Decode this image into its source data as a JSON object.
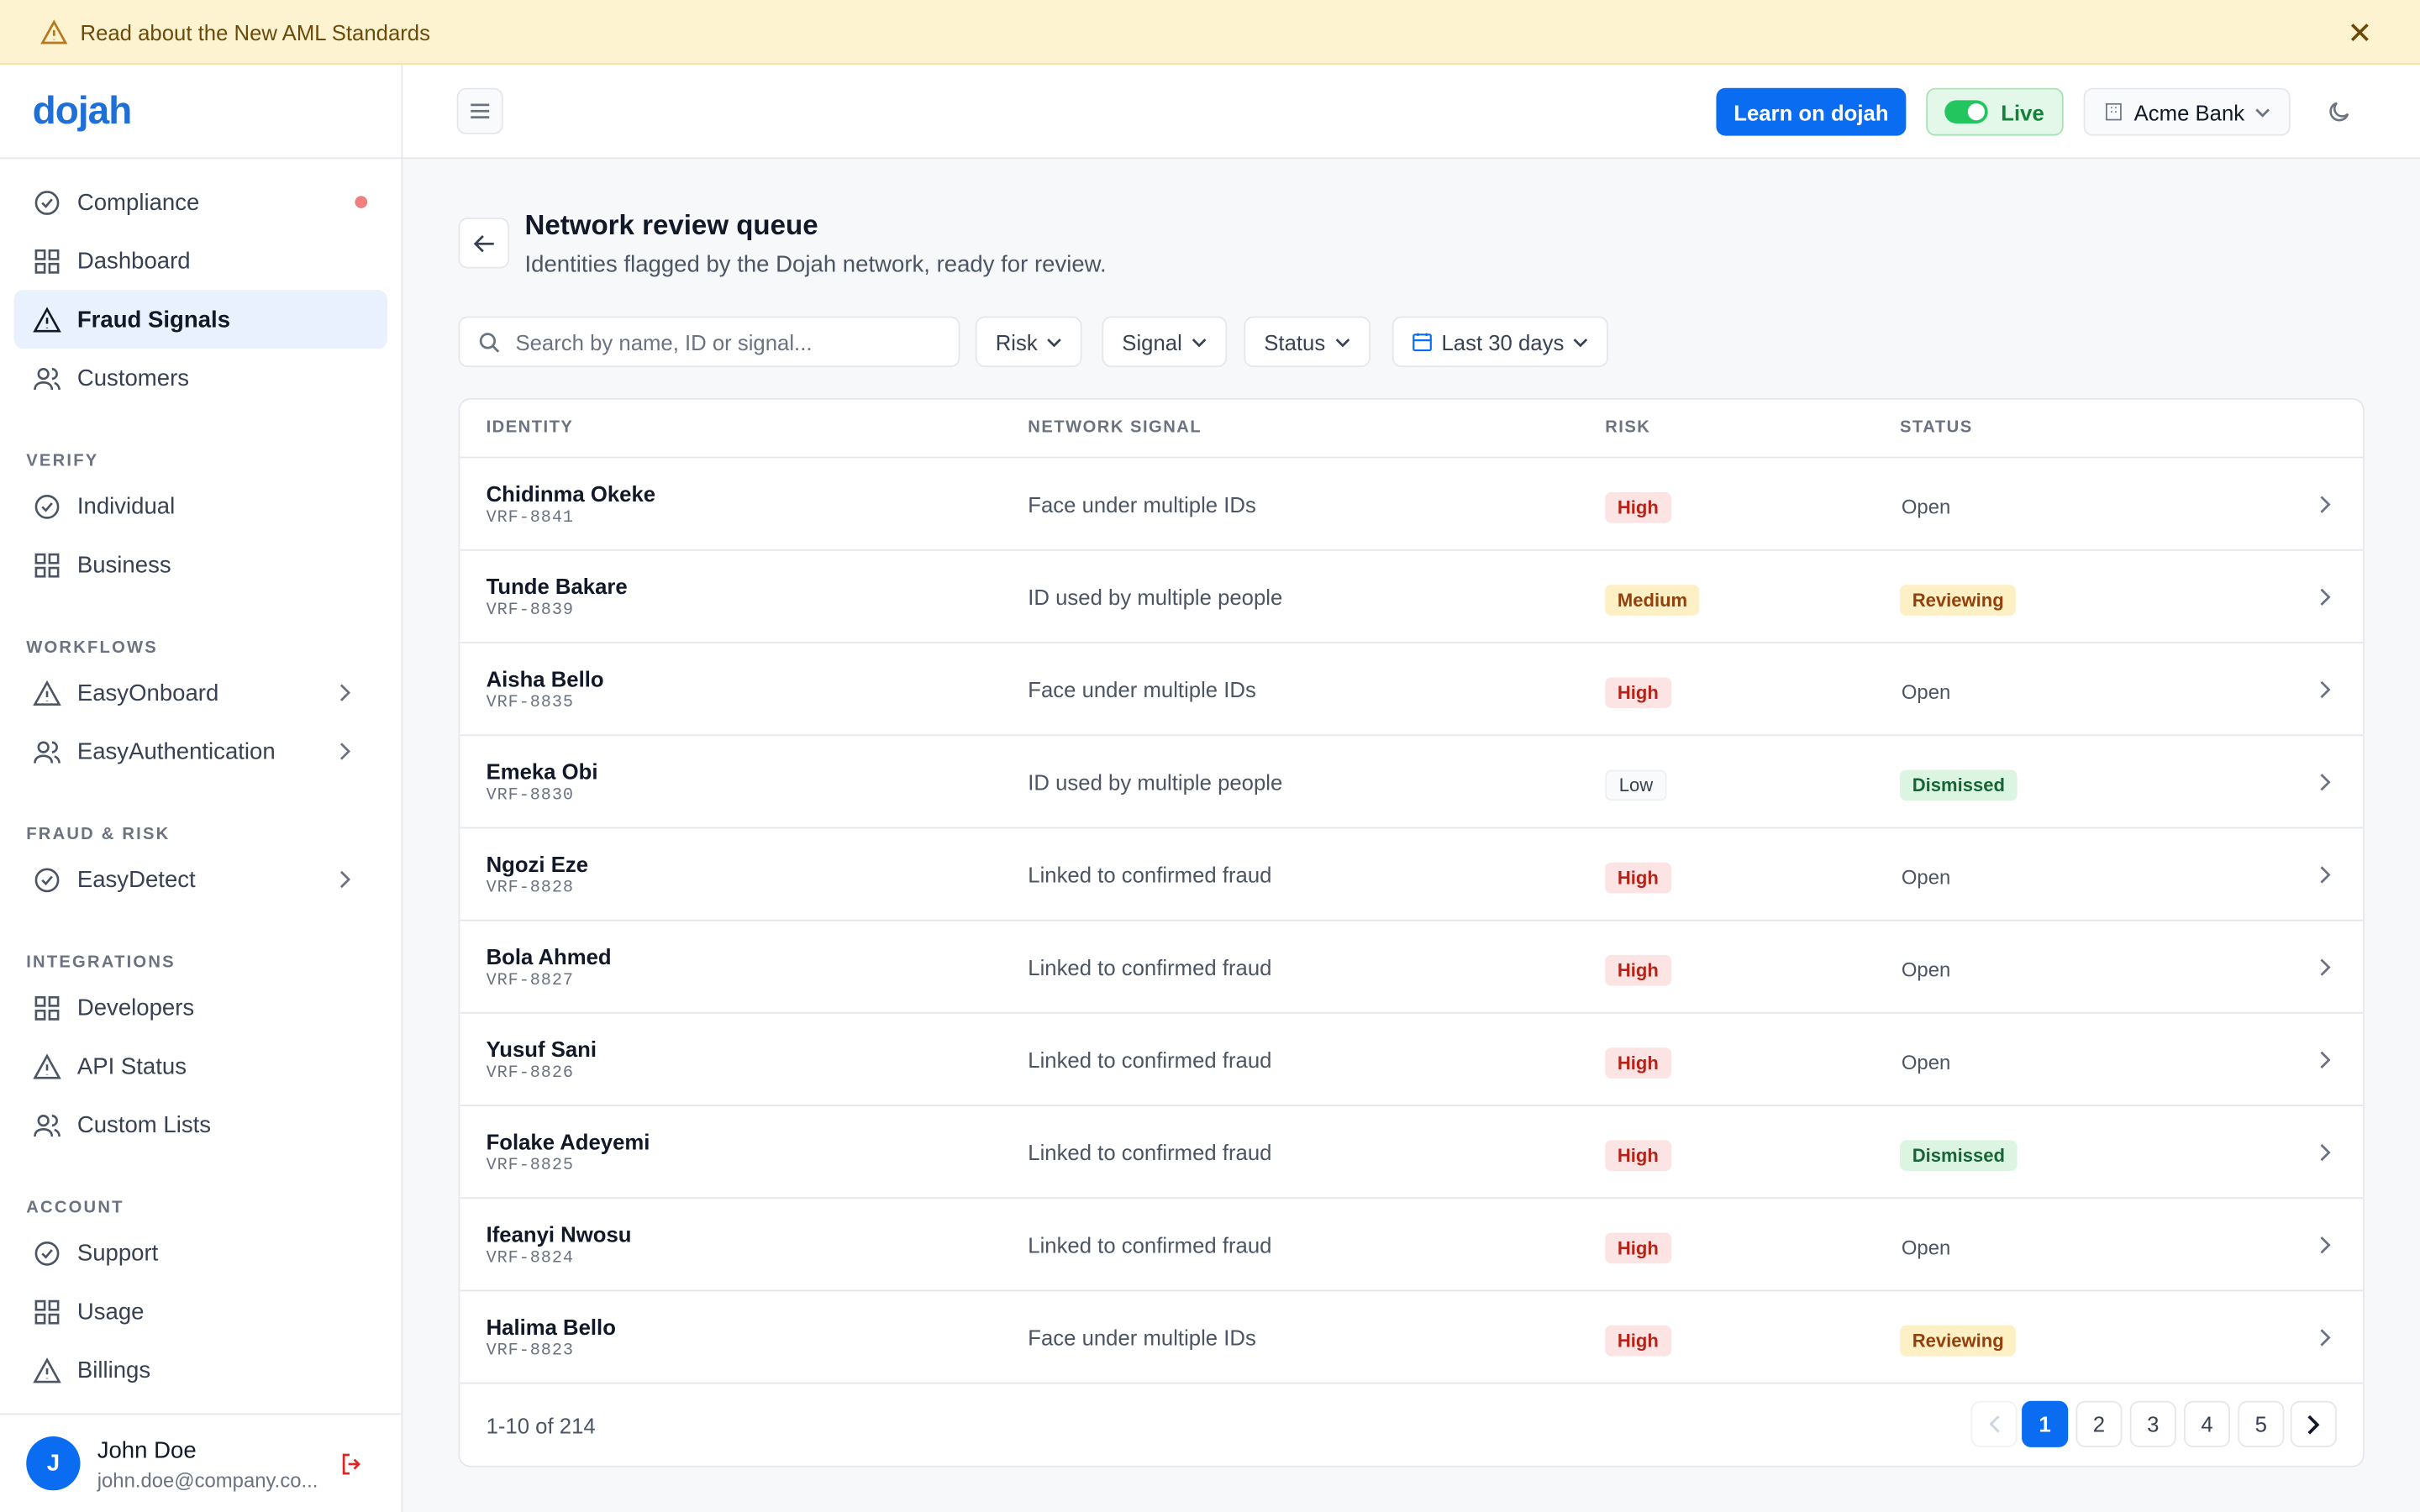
{
  "banner": {
    "text": "Read about the New AML Standards"
  },
  "brand": "dojah",
  "sidebar": {
    "top_items": [
      "Compliance",
      "Dashboard",
      "Fraud Signals",
      "Customers"
    ],
    "sections": [
      {
        "title": "VERIFY",
        "items": [
          "Individual",
          "Business"
        ]
      },
      {
        "title": "WORKFLOWS",
        "items": [
          "EasyOnboard",
          "EasyAuthentication"
        ]
      },
      {
        "title": "FRAUD & RISK",
        "items": [
          "EasyDetect"
        ]
      },
      {
        "title": "INTEGRATIONS",
        "items": [
          "Developers",
          "API Status",
          "Custom Lists"
        ]
      },
      {
        "title": "ACCOUNT",
        "items": [
          "Support",
          "Usage",
          "Billings"
        ]
      }
    ]
  },
  "user": {
    "initial": "J",
    "name": "John Doe",
    "email": "john.doe@company.co..."
  },
  "header": {
    "learn_button": "Learn on dojah",
    "mode": "Live",
    "org": "Acme Bank"
  },
  "page": {
    "title": "Network review queue",
    "subtitle": "Identities flagged by the Dojah network, ready for review."
  },
  "filters": {
    "search_placeholder": "Search by name, ID or signal...",
    "buttons": [
      "Risk",
      "Signal",
      "Status",
      "Last 30 days"
    ]
  },
  "table": {
    "columns": [
      "IDENTITY",
      "NETWORK SIGNAL",
      "RISK",
      "STATUS"
    ],
    "rows": [
      {
        "name": "Chidinma Okeke",
        "id": "VRF-8841",
        "signal": "Face under multiple IDs",
        "risk": {
          "label": "High",
          "color": "#b42318",
          "bg": "#fde4e4"
        },
        "status": {
          "label": "Open"
        }
      },
      {
        "name": "Tunde Bakare",
        "id": "VRF-8839",
        "signal": "ID used by multiple people",
        "risk": {
          "label": "Medium",
          "color": "#92400e",
          "bg": "#fdf0c4"
        },
        "status": {
          "label": "Reviewing",
          "color": "#92400e",
          "bg": "#fdf0c4"
        }
      },
      {
        "name": "Aisha Bello",
        "id": "VRF-8835",
        "signal": "Face under multiple IDs",
        "risk": {
          "label": "High",
          "color": "#b42318",
          "bg": "#fde4e4"
        },
        "status": {
          "label": "Open"
        }
      },
      {
        "name": "Emeka Obi",
        "id": "VRF-8830",
        "signal": "ID used by multiple people",
        "risk": {
          "label": "Low",
          "color": "#374151",
          "bg": "#f9fafb"
        },
        "status": {
          "label": "Dismissed",
          "color": "#166534",
          "bg": "#dcf5e3"
        }
      },
      {
        "name": "Ngozi Eze",
        "id": "VRF-8828",
        "signal": "Linked to confirmed fraud",
        "risk": {
          "label": "High",
          "color": "#b42318",
          "bg": "#fde4e4"
        },
        "status": {
          "label": "Open"
        }
      },
      {
        "name": "Bola Ahmed",
        "id": "VRF-8827",
        "signal": "Linked to confirmed fraud",
        "risk": {
          "label": "High",
          "color": "#b42318",
          "bg": "#fde4e4"
        },
        "status": {
          "label": "Open"
        }
      },
      {
        "name": "Yusuf Sani",
        "id": "VRF-8826",
        "signal": "Linked to confirmed fraud",
        "risk": {
          "label": "High",
          "color": "#b42318",
          "bg": "#fde4e4"
        },
        "status": {
          "label": "Open"
        }
      },
      {
        "name": "Folake Adeyemi",
        "id": "VRF-8825",
        "signal": "Linked to confirmed fraud",
        "risk": {
          "label": "High",
          "color": "#b42318",
          "bg": "#fde4e4"
        },
        "status": {
          "label": "Dismissed",
          "color": "#166534",
          "bg": "#dcf5e3"
        }
      },
      {
        "name": "Ifeanyi Nwosu",
        "id": "VRF-8824",
        "signal": "Linked to confirmed fraud",
        "risk": {
          "label": "High",
          "color": "#b42318",
          "bg": "#fde4e4"
        },
        "status": {
          "label": "Open"
        }
      },
      {
        "name": "Halima Bello",
        "id": "VRF-8823",
        "signal": "Face under multiple IDs",
        "risk": {
          "label": "High",
          "color": "#b42318",
          "bg": "#fde4e4"
        },
        "status": {
          "label": "Reviewing",
          "color": "#92400e",
          "bg": "#fdf0c4"
        }
      }
    ]
  },
  "pagination": {
    "summary": "1-10 of 214",
    "pages": [
      1,
      2,
      3,
      4,
      5
    ],
    "current": 1
  }
}
